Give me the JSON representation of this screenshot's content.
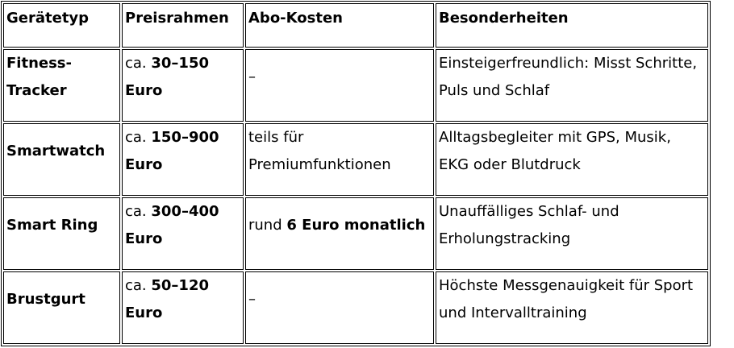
{
  "headers": [
    "Gerätetyp",
    "Preisrahmen",
    "Abo-Kosten",
    "Besonderheiten"
  ],
  "rows": [
    {
      "type": "Fitness-Tracker",
      "price_prefix": "ca. ",
      "price": "30–150 Euro",
      "abo_prefix": "–",
      "abo": "",
      "features": "Einsteigerfreundlich: Misst Schritte, Puls und Schlaf"
    },
    {
      "type": "Smartwatch",
      "price_prefix": "ca. ",
      "price": "150–900 Euro",
      "abo_prefix": "teils für Premiumfunktionen",
      "abo": "",
      "features": "Alltagsbegleiter mit GPS, Musik, EKG oder Blutdruck"
    },
    {
      "type": "Smart Ring",
      "price_prefix": "ca. ",
      "price": "300–400 Euro",
      "abo_prefix": "rund ",
      "abo": "6 Euro monatlich",
      "features": "Unauffälliges Schlaf- und Erholungstracking"
    },
    {
      "type": "Brustgurt",
      "price_prefix": "ca. ",
      "price": "50–120 Euro",
      "abo_prefix": "–",
      "abo": "",
      "features": "Höchste Messgenauigkeit für Sport und Intervalltraining"
    }
  ]
}
